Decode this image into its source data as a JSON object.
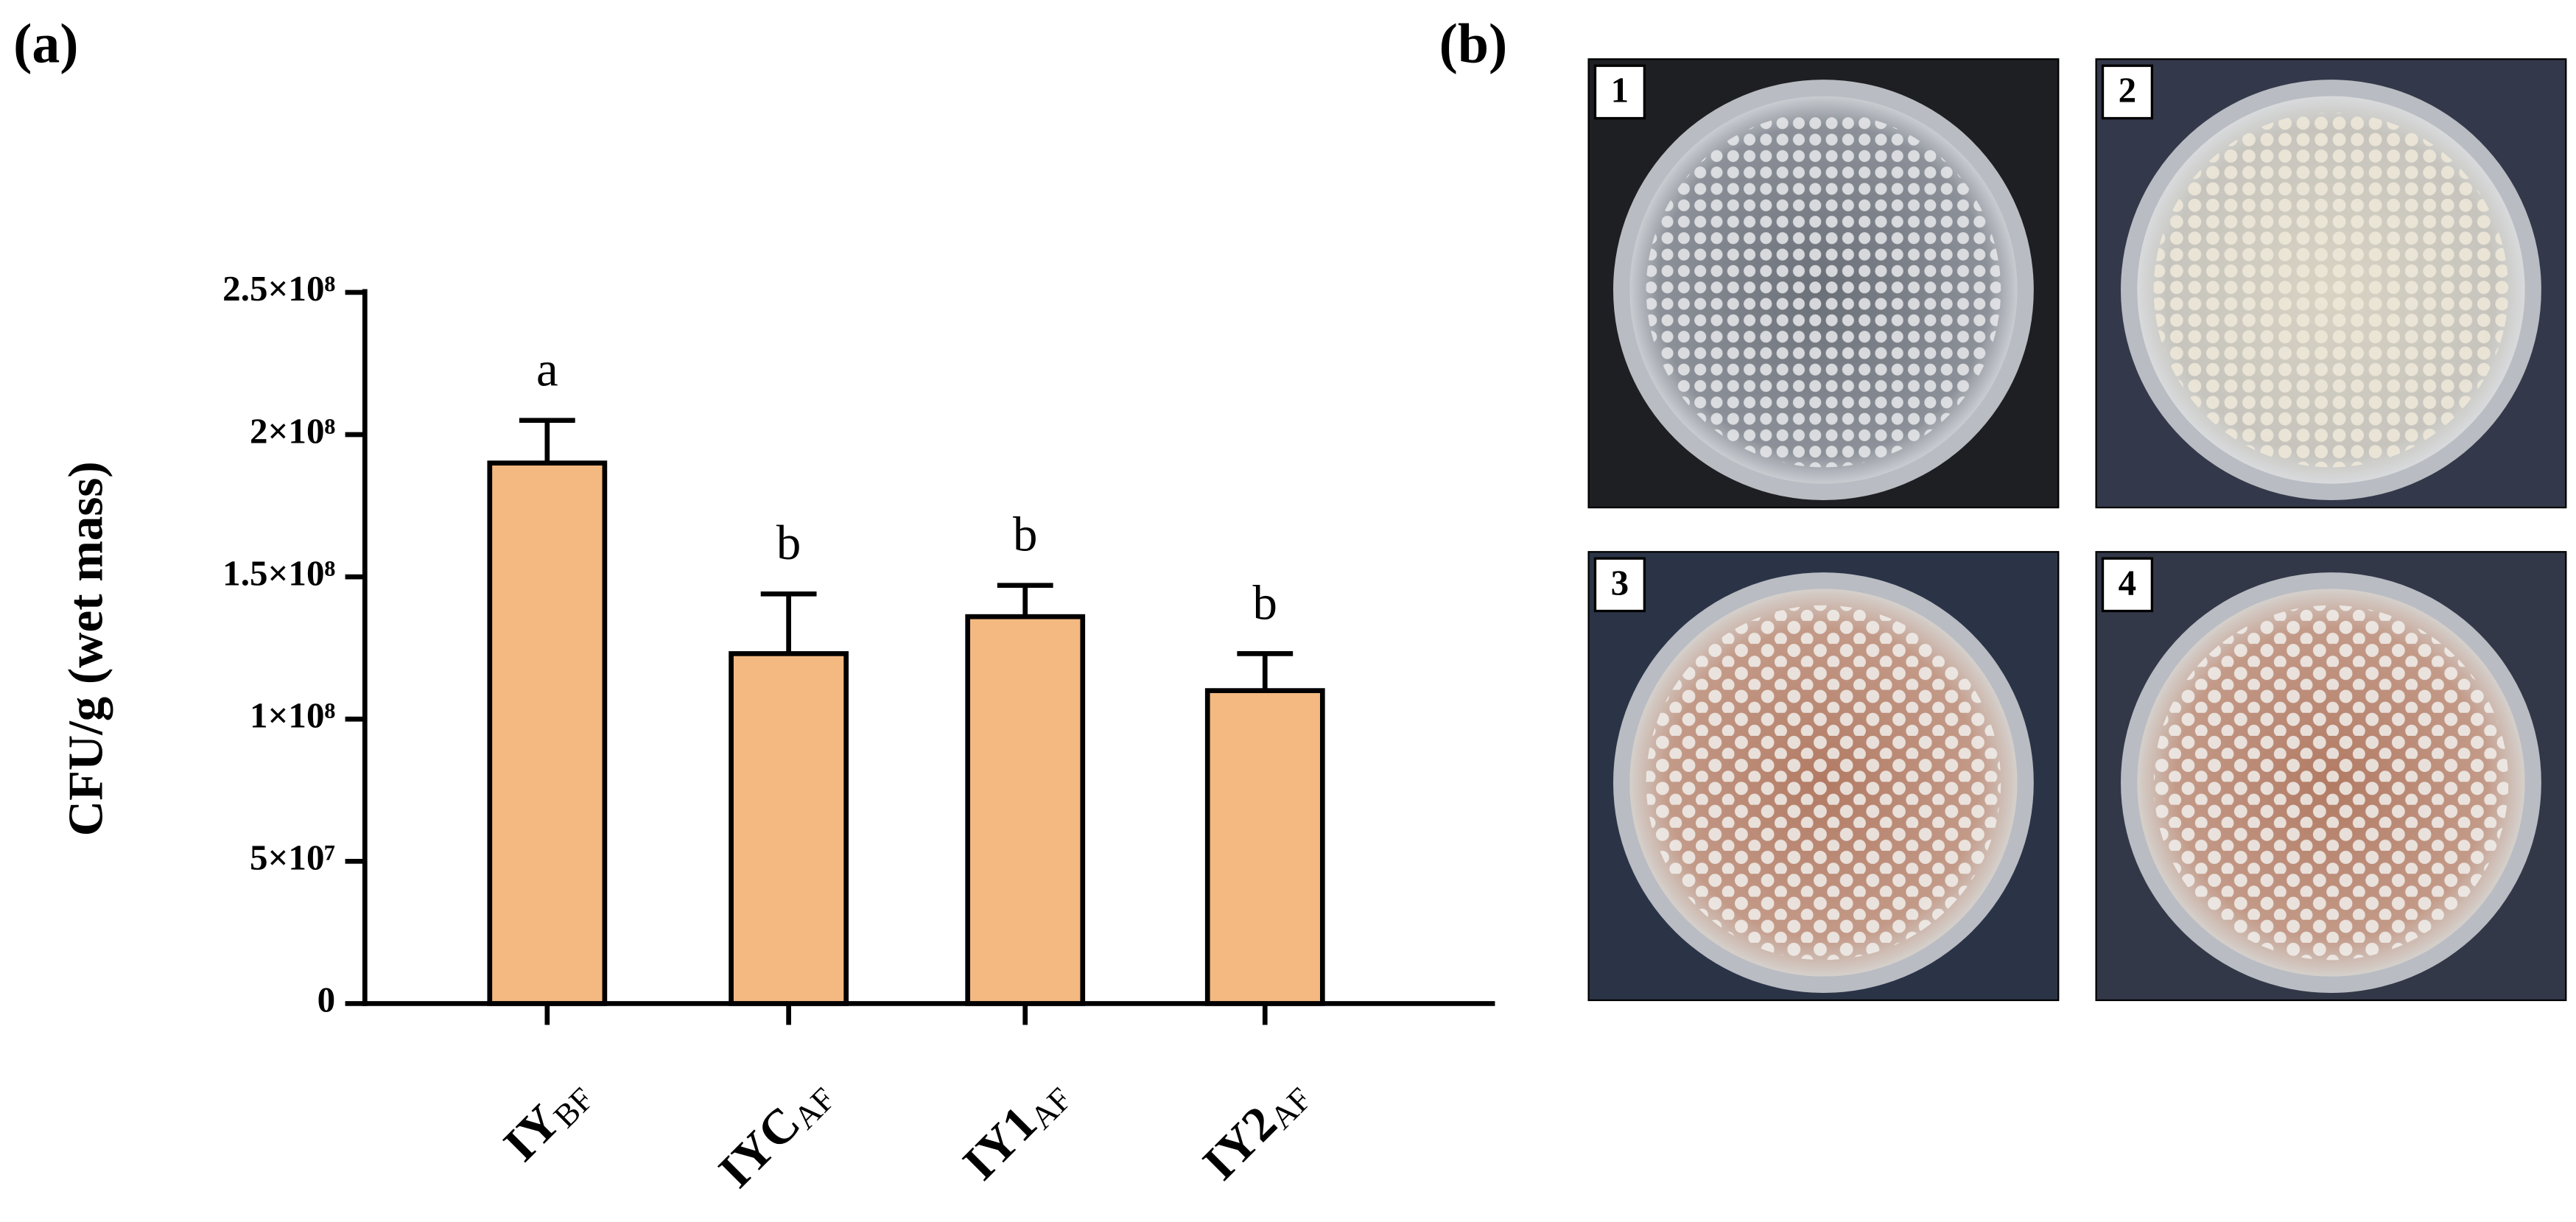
{
  "panel_labels": [
    "(a)",
    "(b)"
  ],
  "chart_data": {
    "type": "bar",
    "ylabel": "CFU/g (wet mass)",
    "categories": [
      "IY",
      "IYC",
      "IY1",
      "IY2"
    ],
    "category_subscripts": [
      "BF",
      "AF",
      "AF",
      "AF"
    ],
    "series": [
      {
        "color": "#f4b981",
        "values": [
          190000000,
          123000000,
          136000000,
          110000000
        ],
        "errors": [
          15000000,
          21000000,
          11000000,
          13000000
        ]
      }
    ],
    "annotations": [
      "a",
      "b",
      "b",
      "b"
    ],
    "ylim": [
      0,
      250000000
    ],
    "yticks": [
      0,
      {
        "value": 50000000,
        "label": "5×10⁷"
      },
      {
        "value": 100000000,
        "label": "1×10⁸"
      },
      {
        "value": 150000000,
        "label": "1.5×10⁸"
      },
      {
        "value": 200000000,
        "label": "2×10⁸"
      },
      {
        "value": 250000000,
        "label": "2.5×10⁸"
      }
    ]
  },
  "photos": [
    "1",
    "2",
    "3",
    "4"
  ]
}
